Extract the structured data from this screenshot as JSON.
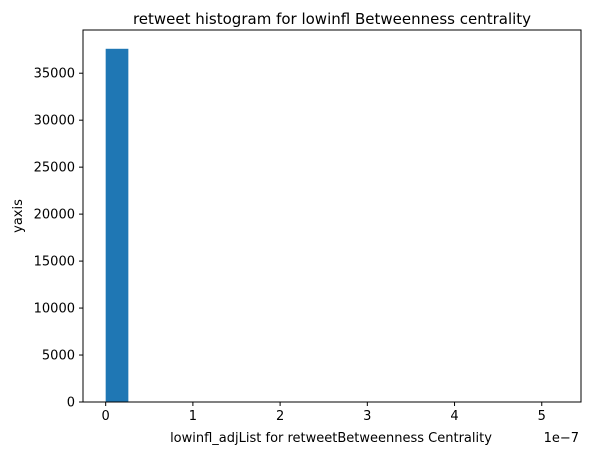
{
  "chart_data": {
    "type": "bar",
    "title": "retweet histogram for lowinfl Betweenness centrality",
    "xlabel": "lowinfl_adjList for retweetBetweenness Centrality",
    "ylabel": "yaxis",
    "x_offset_text": "1e−7",
    "xlim": [
      -0.26,
      5.45
    ],
    "ylim": [
      0,
      39600
    ],
    "x_ticks": [
      0,
      1,
      2,
      3,
      4,
      5
    ],
    "y_ticks": [
      0,
      5000,
      10000,
      15000,
      20000,
      25000,
      30000,
      35000
    ],
    "bins": [
      {
        "x0": 0.0,
        "x1": 0.26,
        "count": 37600
      },
      {
        "x0": 0.26,
        "x1": 0.52,
        "count": 0
      },
      {
        "x0": 0.52,
        "x1": 0.78,
        "count": 0
      },
      {
        "x0": 0.78,
        "x1": 1.04,
        "count": 0
      },
      {
        "x0": 1.04,
        "x1": 1.3,
        "count": 0
      },
      {
        "x0": 1.3,
        "x1": 1.56,
        "count": 0
      },
      {
        "x0": 1.56,
        "x1": 1.82,
        "count": 0
      },
      {
        "x0": 1.82,
        "x1": 2.08,
        "count": 0
      },
      {
        "x0": 2.08,
        "x1": 2.34,
        "count": 0
      },
      {
        "x0": 2.34,
        "x1": 2.6,
        "count": 0
      },
      {
        "x0": 2.6,
        "x1": 2.86,
        "count": 0
      },
      {
        "x0": 2.86,
        "x1": 3.12,
        "count": 0
      },
      {
        "x0": 3.12,
        "x1": 3.38,
        "count": 0
      },
      {
        "x0": 3.38,
        "x1": 3.64,
        "count": 0
      },
      {
        "x0": 3.64,
        "x1": 3.9,
        "count": 0
      },
      {
        "x0": 3.9,
        "x1": 4.16,
        "count": 0
      },
      {
        "x0": 4.16,
        "x1": 4.42,
        "count": 0
      },
      {
        "x0": 4.42,
        "x1": 4.68,
        "count": 0
      },
      {
        "x0": 4.68,
        "x1": 4.94,
        "count": 0
      },
      {
        "x0": 4.94,
        "x1": 5.2,
        "count": 0
      }
    ],
    "bar_color": "#1f77b4",
    "grid": false,
    "legend": "none"
  }
}
